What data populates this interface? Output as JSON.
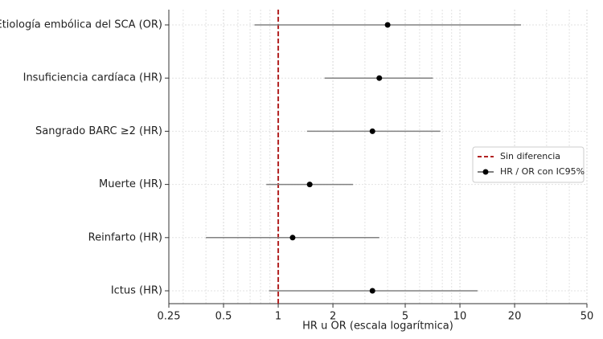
{
  "chart_data": {
    "type": "forest",
    "categories": [
      "Etiología embólica del SCA (OR)",
      "Insuficiencia cardíaca (HR)",
      "Sangrado BARC ≥2 (HR)",
      "Muerte (HR)",
      "Reinfarto (HR)",
      "Ictus (HR)"
    ],
    "series": [
      {
        "name": "HR / OR con IC95%",
        "color": "#000000",
        "ci_color": "#808080",
        "values": [
          4.0,
          3.6,
          3.3,
          1.49,
          1.2,
          3.3
        ],
        "lower": [
          0.74,
          1.8,
          1.44,
          0.86,
          0.4,
          0.89
        ],
        "upper": [
          21.7,
          7.1,
          7.8,
          2.58,
          3.6,
          12.5
        ]
      }
    ],
    "reference_line": {
      "name": "Sin diferencia",
      "value": 1,
      "color": "#b22222"
    },
    "x_label": "HR u OR (escala logarítmica)",
    "x_log": true,
    "xlim": [
      0.25,
      50
    ],
    "xticks": [
      0.25,
      0.5,
      1,
      2,
      5,
      10,
      20,
      50
    ],
    "xminorticks": [
      0.3,
      0.4,
      0.6,
      0.7,
      0.8,
      0.9,
      3,
      4,
      6,
      7,
      8,
      9,
      30,
      40
    ],
    "grid": true,
    "legend_loc": "center right"
  }
}
